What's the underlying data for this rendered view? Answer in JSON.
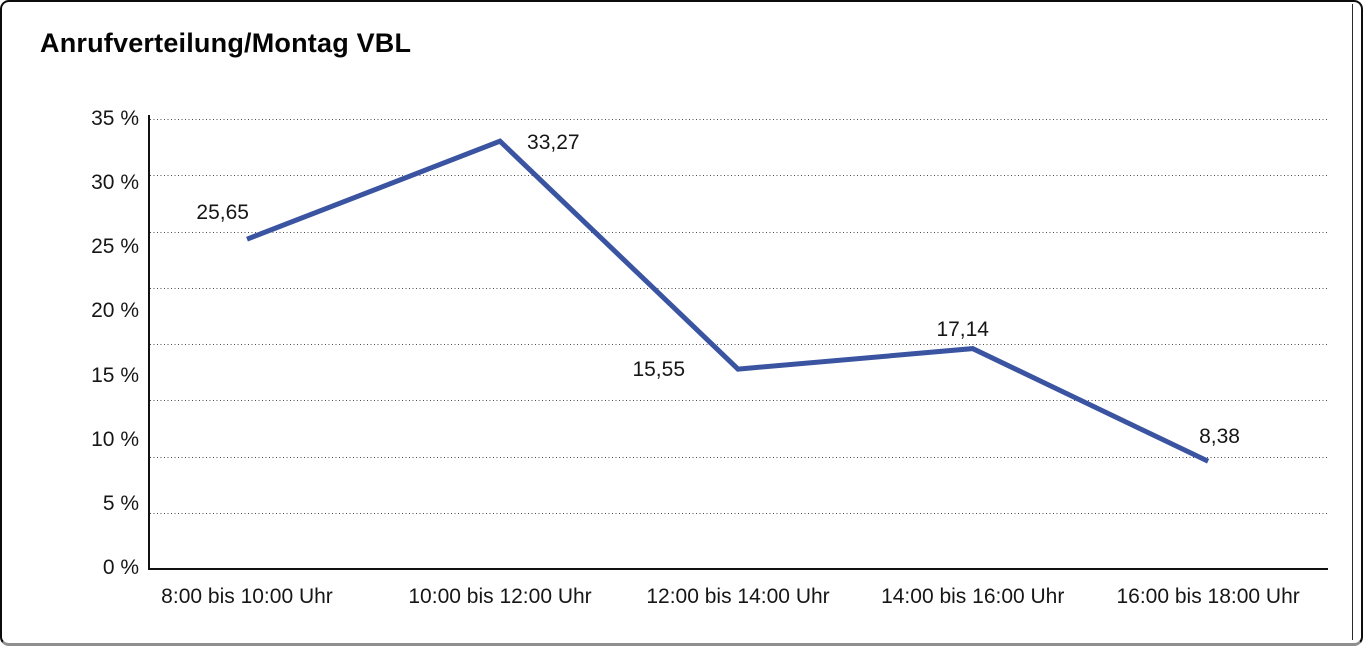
{
  "chart_data": {
    "type": "line",
    "title": "Anrufverteilung/Montag VBL",
    "categories": [
      "8:00 bis 10:00 Uhr",
      "10:00 bis 12:00 Uhr",
      "12:00 bis 14:00 Uhr",
      "14:00 bis 16:00 Uhr",
      "16:00 bis 18:00 Uhr"
    ],
    "values": [
      25.65,
      33.27,
      15.55,
      17.14,
      8.38
    ],
    "point_labels": [
      "25,65",
      "33,27",
      "15,55",
      "17,14",
      "8,38"
    ],
    "ytick_labels": [
      "0 %",
      "5 %",
      "10 %",
      "15 %",
      "20 %",
      "25 %",
      "30 %",
      "35 %"
    ],
    "ytick_values": [
      0,
      5,
      10,
      15,
      20,
      25,
      30,
      35
    ],
    "ylim": [
      0,
      35
    ],
    "xlabel": "",
    "ylabel": "",
    "legend": "none",
    "grid": "horizontal-dotted",
    "gridline_intervals": 8,
    "line_color": "#3A54A1",
    "axis_color": "#111111",
    "text_color": "#161616",
    "frame_border_color": "#0c0c0c",
    "frame_bottom_color": "#8f8f8f"
  }
}
